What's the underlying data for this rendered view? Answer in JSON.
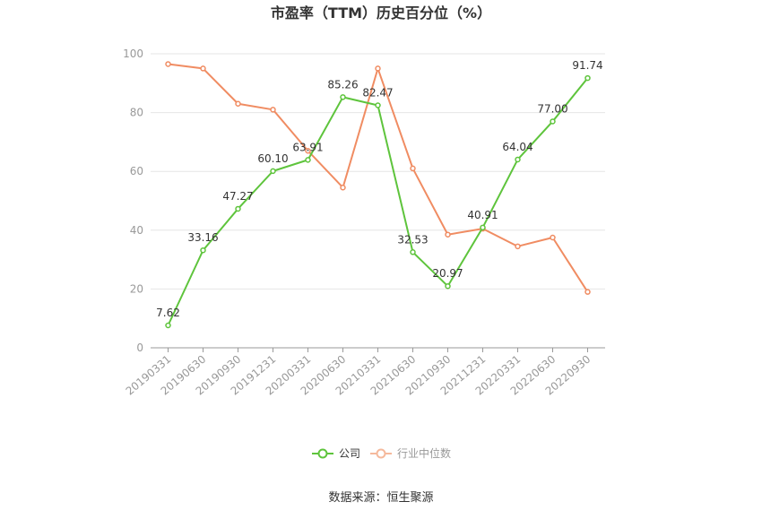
{
  "chart_data": {
    "type": "line",
    "title": "市盈率（TTM）历史百分位（%）",
    "categories": [
      "20190331",
      "20190630",
      "20190930",
      "20191231",
      "20200331",
      "20200630",
      "20210331",
      "20210630",
      "20210930",
      "20211231",
      "20220331",
      "20220630",
      "20220930"
    ],
    "series": [
      {
        "name": "公司",
        "color": "#5ec43c",
        "values": [
          7.62,
          33.16,
          47.27,
          60.1,
          63.91,
          85.26,
          82.47,
          32.53,
          20.97,
          40.91,
          64.04,
          77.0,
          91.74
        ],
        "labels": [
          "7.62",
          "33.16",
          "47.27",
          "60.10",
          "63.91",
          "85.26",
          "82.47",
          "32.53",
          "20.97",
          "40.91",
          "64.04",
          "77.00",
          "91.74"
        ]
      },
      {
        "name": "行业中位数",
        "color": "#f08c62",
        "values": [
          96.5,
          95.0,
          83.0,
          81.0,
          67.0,
          54.5,
          95.0,
          61.0,
          38.5,
          40.5,
          34.5,
          37.5,
          19.0
        ]
      }
    ],
    "ylim": [
      0,
      100
    ],
    "yticks": [
      0,
      20,
      40,
      60,
      80,
      100
    ],
    "grid": true,
    "legend": "bottom-center"
  },
  "source_text": "数据来源：恒生聚源"
}
